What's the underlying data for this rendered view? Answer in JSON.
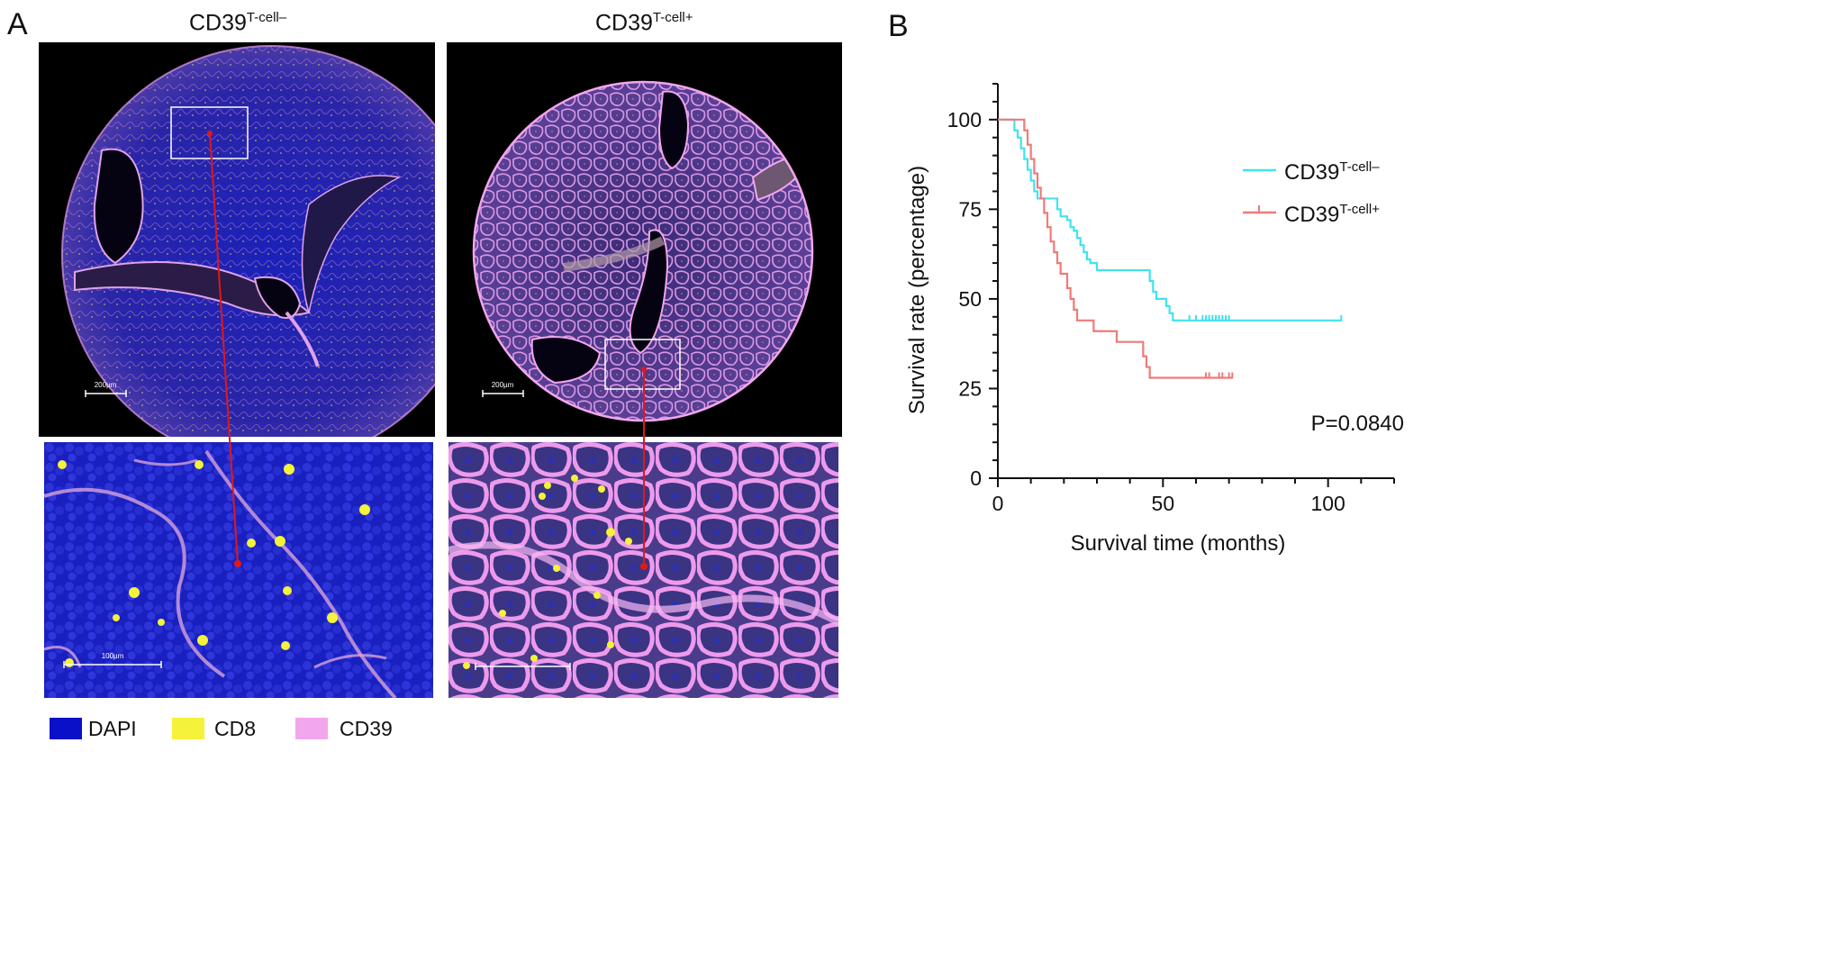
{
  "panel_a": {
    "letter": "A",
    "negative": {
      "title_main": "CD39",
      "title_sup": "T-cell–",
      "scale_bar_label": "200µm",
      "zoom_scale_bar_label": "100µm"
    },
    "positive": {
      "title_main": "CD39",
      "title_sup": "T-cell+",
      "scale_bar_label": "200µm"
    },
    "legend": [
      {
        "label": "DAPI",
        "color": "#0a10c8"
      },
      {
        "label": "CD8",
        "color": "#f4f23a"
      },
      {
        "label": "CD39",
        "color": "#f2a6ee"
      }
    ]
  },
  "panel_b": {
    "letter": "B",
    "legend_main": "CD39",
    "legend_neg_sup": "T-cell–",
    "legend_pos_sup": "T-cell+",
    "p_value": "P=0.0840"
  },
  "chart_data": {
    "type": "line",
    "title": "",
    "xlabel": "Survival time (months)",
    "ylabel": "Survival rate (percentage)",
    "xlim": [
      0,
      120
    ],
    "ylim": [
      0,
      110
    ],
    "xticks": [
      0,
      50,
      100
    ],
    "yticks": [
      0,
      25,
      50,
      75,
      100
    ],
    "legend_position": "top-right",
    "series": [
      {
        "name": "CD39T-cell–",
        "color": "#3fe3ee",
        "steps": [
          [
            0,
            100
          ],
          [
            4,
            100
          ],
          [
            5,
            97
          ],
          [
            6,
            95
          ],
          [
            7,
            92
          ],
          [
            8,
            89
          ],
          [
            9,
            86
          ],
          [
            10,
            83
          ],
          [
            11,
            80
          ],
          [
            12,
            78
          ],
          [
            17,
            78
          ],
          [
            18,
            75
          ],
          [
            19,
            73
          ],
          [
            21,
            72
          ],
          [
            22,
            70
          ],
          [
            23,
            69
          ],
          [
            24,
            67
          ],
          [
            25,
            65
          ],
          [
            26,
            63
          ],
          [
            27,
            61
          ],
          [
            28,
            60
          ],
          [
            30,
            58
          ],
          [
            45,
            58
          ],
          [
            46,
            55
          ],
          [
            47,
            52
          ],
          [
            48,
            50
          ],
          [
            51,
            48
          ],
          [
            52,
            46
          ],
          [
            53,
            44
          ],
          [
            104,
            44
          ]
        ],
        "censored": [
          58,
          60,
          62,
          63,
          64,
          65,
          66,
          67,
          68,
          69,
          70,
          104
        ]
      },
      {
        "name": "CD39T-cell+",
        "color": "#ee7b78",
        "steps": [
          [
            0,
            100
          ],
          [
            7,
            100
          ],
          [
            8,
            97
          ],
          [
            9,
            93
          ],
          [
            10,
            89
          ],
          [
            11,
            85
          ],
          [
            12,
            81
          ],
          [
            13,
            78
          ],
          [
            14,
            74
          ],
          [
            15,
            70
          ],
          [
            16,
            66
          ],
          [
            17,
            63
          ],
          [
            18,
            60
          ],
          [
            19,
            57
          ],
          [
            21,
            53
          ],
          [
            22,
            50
          ],
          [
            23,
            47
          ],
          [
            24,
            44
          ],
          [
            28,
            44
          ],
          [
            29,
            41
          ],
          [
            35,
            41
          ],
          [
            36,
            38
          ],
          [
            43,
            38
          ],
          [
            44,
            34
          ],
          [
            45,
            31
          ],
          [
            46,
            28
          ],
          [
            71,
            28
          ]
        ],
        "censored": [
          63,
          64,
          67,
          68,
          70,
          71
        ]
      }
    ]
  }
}
